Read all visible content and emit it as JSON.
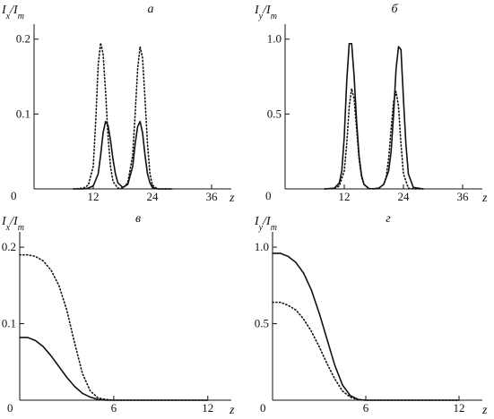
{
  "chart_data": [
    {
      "panel": "а",
      "type": "line",
      "ylabel_main": "I",
      "ylabel_sub": "x",
      "ylabel_den": "I",
      "ylabel_den_sub": "m",
      "xlabel": "z",
      "xlim": [
        0,
        40
      ],
      "ylim": [
        0,
        0.22
      ],
      "xticks": [
        12,
        24,
        36
      ],
      "xtick_labels": [
        "12",
        "24",
        "36"
      ],
      "yticks": [
        0.1,
        0.2
      ],
      "ytick_labels": [
        "0.1",
        "0.2"
      ],
      "origin_label": "0",
      "series": [
        {
          "style": "solid",
          "x": [
            8,
            10,
            11,
            12,
            13,
            13.5,
            14,
            14.5,
            15,
            15.5,
            16,
            16.5,
            17,
            18,
            19,
            20,
            20.5,
            21,
            21.5,
            22,
            22.5,
            23,
            23.5,
            24,
            25,
            26,
            28
          ],
          "y": [
            0,
            0,
            0.001,
            0.004,
            0.02,
            0.045,
            0.075,
            0.09,
            0.085,
            0.065,
            0.04,
            0.02,
            0.008,
            0.002,
            0.006,
            0.03,
            0.06,
            0.083,
            0.09,
            0.075,
            0.045,
            0.02,
            0.008,
            0.002,
            0,
            0,
            0
          ]
        },
        {
          "style": "dotted",
          "x": [
            8,
            10,
            11,
            12,
            12.5,
            13,
            13.5,
            14,
            14.5,
            15,
            15.5,
            16,
            17,
            18,
            19,
            20,
            20.5,
            21,
            21.5,
            22,
            22.5,
            23,
            23.5,
            24,
            25,
            26,
            28
          ],
          "y": [
            0,
            0.001,
            0.005,
            0.03,
            0.09,
            0.165,
            0.195,
            0.18,
            0.13,
            0.07,
            0.03,
            0.01,
            0.001,
            0.001,
            0.008,
            0.045,
            0.1,
            0.16,
            0.19,
            0.175,
            0.12,
            0.06,
            0.02,
            0.005,
            0,
            0,
            0
          ]
        }
      ]
    },
    {
      "panel": "б",
      "type": "line",
      "ylabel_main": "I",
      "ylabel_sub": "y",
      "ylabel_den": "I",
      "ylabel_den_sub": "m",
      "xlabel": "z",
      "xlim": [
        0,
        40
      ],
      "ylim": [
        0,
        1.1
      ],
      "xticks": [
        12,
        24,
        36
      ],
      "xtick_labels": [
        "12",
        "24",
        "36"
      ],
      "yticks": [
        0.5,
        1.0
      ],
      "ytick_labels": [
        "0.5",
        "1.0"
      ],
      "origin_label": "0",
      "series": [
        {
          "style": "solid",
          "x": [
            8,
            10,
            11,
            11.5,
            12,
            12.5,
            13,
            13.5,
            14,
            14.5,
            15,
            15.5,
            16,
            17,
            18,
            19,
            20,
            21,
            21.5,
            22,
            22.5,
            23,
            23.5,
            24,
            24.5,
            25,
            26,
            28
          ],
          "y": [
            0,
            0.005,
            0.04,
            0.12,
            0.35,
            0.72,
            0.97,
            0.97,
            0.75,
            0.45,
            0.22,
            0.09,
            0.03,
            0.002,
            0.001,
            0.005,
            0.03,
            0.12,
            0.25,
            0.5,
            0.8,
            0.95,
            0.93,
            0.6,
            0.3,
            0.1,
            0.01,
            0
          ]
        },
        {
          "style": "dotted",
          "x": [
            8,
            10,
            11,
            12,
            12.5,
            13,
            13.5,
            14,
            14.5,
            15,
            15.5,
            16,
            17,
            18,
            19,
            20,
            20.5,
            21,
            21.5,
            22,
            22.5,
            23,
            23.5,
            24,
            25,
            26,
            28
          ],
          "y": [
            0,
            0.003,
            0.02,
            0.12,
            0.3,
            0.55,
            0.67,
            0.6,
            0.4,
            0.2,
            0.08,
            0.03,
            0.002,
            0.001,
            0.004,
            0.03,
            0.08,
            0.2,
            0.4,
            0.58,
            0.65,
            0.55,
            0.3,
            0.1,
            0.005,
            0,
            0
          ]
        }
      ]
    },
    {
      "panel": "в",
      "type": "line",
      "ylabel_main": "I",
      "ylabel_sub": "x",
      "ylabel_den": "I",
      "ylabel_den_sub": "m",
      "xlabel": "z",
      "xlim": [
        0,
        13.5
      ],
      "ylim": [
        0,
        0.22
      ],
      "xticks": [
        6,
        12
      ],
      "xtick_labels": [
        "6",
        "12"
      ],
      "yticks": [
        0.1,
        0.2
      ],
      "ytick_labels": [
        "0.1",
        "0.2"
      ],
      "origin_label": "0",
      "series": [
        {
          "style": "solid",
          "x": [
            0,
            0.5,
            1,
            1.5,
            2,
            2.5,
            3,
            3.5,
            4,
            4.5,
            5,
            5.5,
            6,
            7,
            8,
            10,
            12
          ],
          "y": [
            0.082,
            0.082,
            0.078,
            0.07,
            0.058,
            0.044,
            0.03,
            0.018,
            0.009,
            0.004,
            0.001,
            0,
            0,
            0,
            0,
            0,
            0
          ]
        },
        {
          "style": "dotted",
          "x": [
            0,
            0.5,
            1,
            1.5,
            2,
            2.5,
            3,
            3.5,
            4,
            4.5,
            5,
            5.5,
            6,
            7,
            8,
            10,
            12
          ],
          "y": [
            0.19,
            0.19,
            0.188,
            0.182,
            0.17,
            0.15,
            0.118,
            0.075,
            0.035,
            0.012,
            0.003,
            0.001,
            0,
            0,
            0,
            0,
            0
          ]
        }
      ]
    },
    {
      "panel": "г",
      "type": "line",
      "ylabel_main": "I",
      "ylabel_sub": "y",
      "ylabel_den": "I",
      "ylabel_den_sub": "m",
      "xlabel": "z",
      "xlim": [
        0,
        13.5
      ],
      "ylim": [
        0,
        1.1
      ],
      "xticks": [
        6,
        12
      ],
      "xtick_labels": [
        "6",
        "12"
      ],
      "yticks": [
        0.5,
        1.0
      ],
      "ytick_labels": [
        "0.5",
        "1.0"
      ],
      "origin_label": "0",
      "series": [
        {
          "style": "solid",
          "x": [
            0,
            0.5,
            1,
            1.5,
            2,
            2.5,
            3,
            3.5,
            4,
            4.5,
            5,
            5.5,
            6,
            7,
            8,
            10,
            12
          ],
          "y": [
            0.96,
            0.96,
            0.94,
            0.9,
            0.83,
            0.72,
            0.57,
            0.4,
            0.23,
            0.1,
            0.03,
            0.005,
            0,
            0,
            0,
            0,
            0
          ]
        },
        {
          "style": "dotted",
          "x": [
            0,
            0.5,
            1,
            1.5,
            2,
            2.5,
            3,
            3.5,
            4,
            4.5,
            5,
            5.5,
            6,
            7,
            8,
            10,
            12
          ],
          "y": [
            0.64,
            0.64,
            0.62,
            0.59,
            0.53,
            0.45,
            0.35,
            0.24,
            0.14,
            0.06,
            0.02,
            0.003,
            0,
            0,
            0,
            0,
            0
          ]
        }
      ]
    }
  ]
}
